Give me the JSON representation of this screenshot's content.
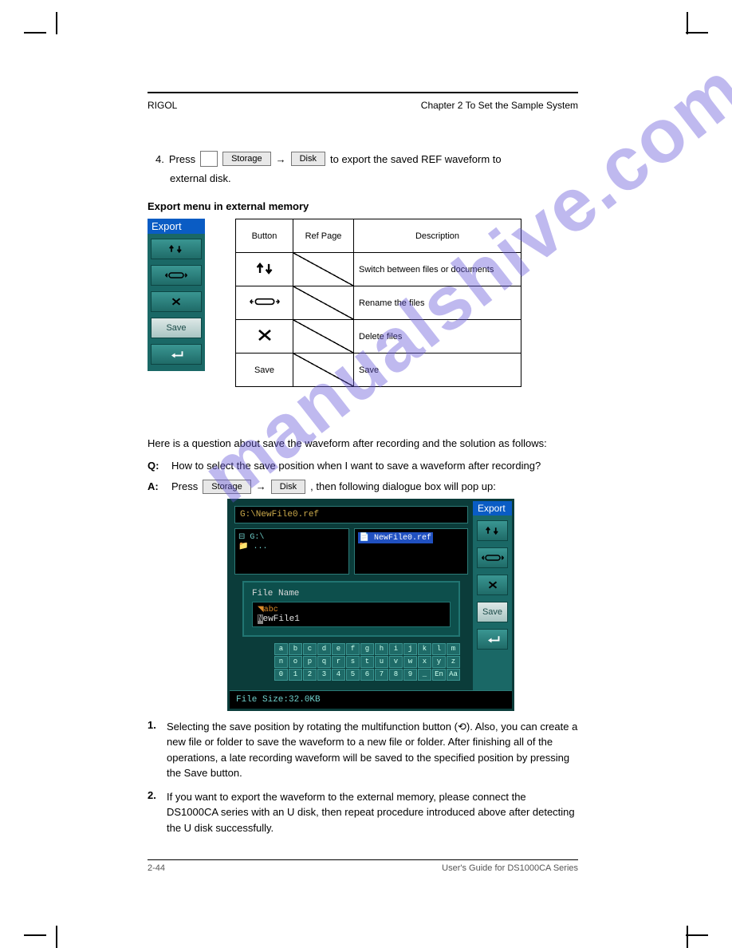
{
  "header": {
    "left": "RIGOL",
    "right": "Chapter 2 To Set the Sample System"
  },
  "prestep": {
    "index": "4.",
    "text_prefix": "Press",
    "btn1": "Storage",
    "arrow": "→",
    "btn2": "Disk",
    "text_suffix": "to export the saved REF waveform to"
  },
  "prestep_line2": "external disk.",
  "section_heading": "Export menu in external memory",
  "sidebar": {
    "title": "Export",
    "items": [
      {
        "name": "updown-button",
        "type": "updown"
      },
      {
        "name": "rename-button",
        "type": "rename"
      },
      {
        "name": "delete-button",
        "type": "delete"
      },
      {
        "name": "save-button",
        "type": "text",
        "label": "Save"
      },
      {
        "name": "return-button",
        "type": "return"
      }
    ]
  },
  "table": {
    "columns": [
      "Button",
      "Ref Page",
      "Description"
    ],
    "rows": [
      {
        "icon": "updown",
        "ref": "",
        "desc": "Switch between files or documents"
      },
      {
        "icon": "rename",
        "ref": "",
        "desc": "Rename the files"
      },
      {
        "icon": "delete",
        "ref": "",
        "desc": "Delete files"
      },
      {
        "icon": "save",
        "label": "Save",
        "ref": "",
        "desc": "Save"
      }
    ]
  },
  "paragraph1": "Here is a question about save the waveform after recording and the solution as follows:",
  "qna": {
    "q_label": "Q:",
    "q_text": "How to select the save position when I want to save a waveform after recording?",
    "a_label": "A:",
    "a_text": {
      "prefix": "Press",
      "btn1": "Storage",
      "arrow": "→",
      "btn2": "Disk",
      "suffix": ", then following dialogue box will pop up:"
    }
  },
  "dialog": {
    "path": "G:\\NewFile0.ref",
    "tree": [
      "⊟ G:\\",
      "  📁 ..."
    ],
    "file_selected": "NewFile0.ref",
    "filename_label": "File Name",
    "ime_tag": "◥abc",
    "filename_value": "NewFile1",
    "keyboard": [
      [
        "a",
        "b",
        "c",
        "d",
        "e",
        "f",
        "g",
        "h",
        "i",
        "j",
        "k",
        "l",
        "m"
      ],
      [
        "n",
        "o",
        "p",
        "q",
        "r",
        "s",
        "t",
        "u",
        "v",
        "w",
        "x",
        "y",
        "z"
      ],
      [
        "0",
        "1",
        "2",
        "3",
        "4",
        "5",
        "6",
        "7",
        "8",
        "9",
        "_",
        "En",
        "Aa"
      ]
    ],
    "size_label": "File Size:32.0KB",
    "sidebar_title": "Export"
  },
  "step1": {
    "num": "1.",
    "prefix": "Selecting the save position by rotating the multifunction button (",
    "knob": "⟲",
    "suffix": "). Also, you can create a new file or folder to save the waveform to a new file or folder. After finishing all of the operations, a late recording waveform will be saved to the specified position by pressing the Save button."
  },
  "step2": {
    "num": "2.",
    "text": "If you want to export the waveform to the external memory, please connect the DS1000CA series with an U disk, then repeat procedure introduced above after detecting the U disk successfully."
  },
  "footer": {
    "left": "2-44",
    "right": "User's Guide for DS1000CA Series"
  },
  "watermark": "manualshive.com",
  "colors": {
    "teal_dark": "#1a6866",
    "teal_btn_top": "#3a9692",
    "teal_btn_bot": "#1f6b68",
    "blue_header": "#0a5cc4",
    "dialog_bg": "#0b3c3a",
    "amber": "#c9a84a",
    "sel_blue": "#2050c0",
    "watermark_color": "rgba(102,89,218,0.42)"
  }
}
